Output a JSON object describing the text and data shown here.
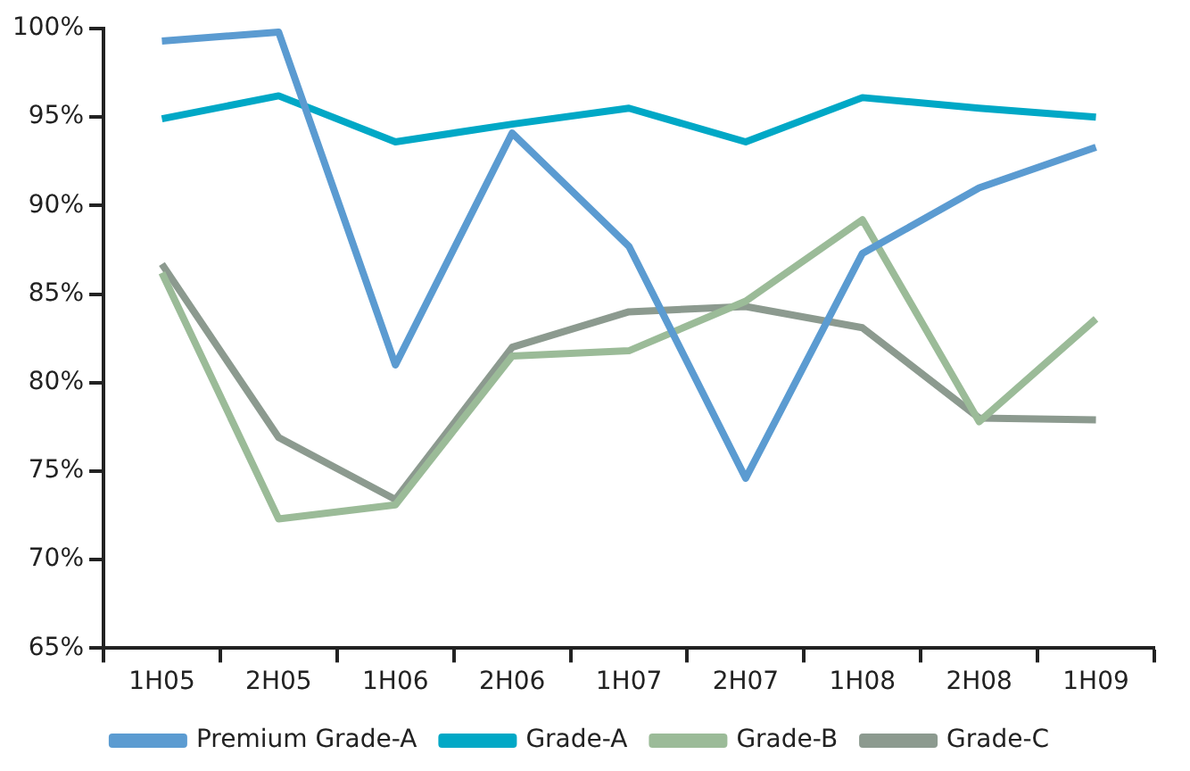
{
  "chart_data": {
    "type": "line",
    "categories": [
      "1H05",
      "2H05",
      "1H06",
      "2H06",
      "1H07",
      "2H07",
      "1H08",
      "2H08",
      "1H09"
    ],
    "series": [
      {
        "name": "Premium Grade-A",
        "color": "#5b9bd1",
        "values": [
          99.3,
          99.8,
          81.0,
          94.1,
          87.7,
          74.6,
          87.3,
          91.0,
          93.3
        ]
      },
      {
        "name": "Grade-A",
        "color": "#00a8c6",
        "values": [
          94.9,
          96.2,
          93.6,
          94.6,
          95.5,
          93.6,
          96.1,
          95.5,
          95.0
        ]
      },
      {
        "name": "Grade-B",
        "color": "#9bbb98",
        "values": [
          86.2,
          72.3,
          73.1,
          81.5,
          81.8,
          84.6,
          89.2,
          77.8,
          83.6
        ]
      },
      {
        "name": "Grade-C",
        "color": "#8c9a8f",
        "values": [
          86.7,
          76.9,
          73.4,
          82.0,
          84.0,
          84.3,
          83.1,
          78.0,
          77.9
        ]
      }
    ],
    "ylim": [
      65,
      100
    ],
    "yticks": [
      {
        "value": 65,
        "label": "65%"
      },
      {
        "value": 70,
        "label": "70%"
      },
      {
        "value": 75,
        "label": "75%"
      },
      {
        "value": 80,
        "label": "80%"
      },
      {
        "value": 85,
        "label": "85%"
      },
      {
        "value": 90,
        "label": "90%"
      },
      {
        "value": 95,
        "label": "95%"
      },
      {
        "value": 100,
        "label": "100%"
      }
    ],
    "grid": false,
    "legend": "bottom",
    "marker": "none",
    "line_style": "solid"
  }
}
